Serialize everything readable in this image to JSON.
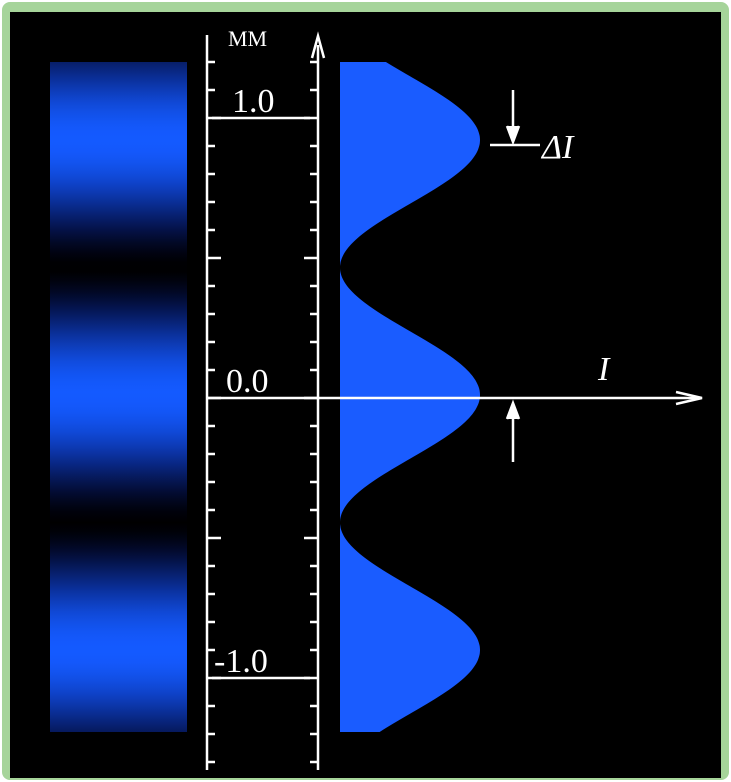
{
  "scale": {
    "unit": "MM",
    "labels": [
      "1.0",
      "0.0",
      "-1.0"
    ]
  },
  "annotations": {
    "delta": "ΔI",
    "intensity": "I"
  }
}
